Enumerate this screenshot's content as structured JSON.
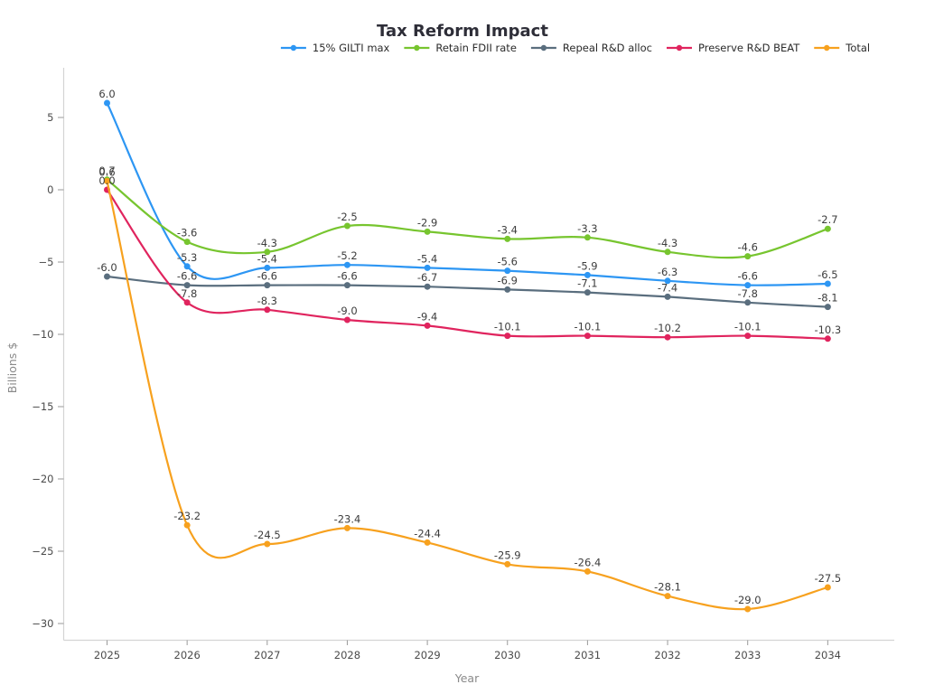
{
  "chart_data": {
    "type": "line",
    "title": "Tax Reform Impact",
    "xlabel": "Year",
    "ylabel": "Billions $",
    "x": [
      2025,
      2026,
      2027,
      2028,
      2029,
      2030,
      2031,
      2032,
      2033,
      2034
    ],
    "yticks": [
      5,
      0,
      -5,
      -10,
      -15,
      -20,
      -25,
      -30
    ],
    "ylim": [
      -31.1,
      8.4
    ],
    "xlim": [
      2024.45,
      2034.8
    ],
    "grid": false,
    "legend_position": "top-center",
    "marker": "circle",
    "line_style": "smooth",
    "point_labels_visible": true,
    "series": [
      {
        "name": "15% GILTI max",
        "color": "#2D96F3",
        "values": [
          6.0,
          -5.3,
          -5.4,
          -5.2,
          -5.4,
          -5.6,
          -5.9,
          -6.3,
          -6.6,
          -6.5
        ]
      },
      {
        "name": "Retain FDII rate",
        "color": "#77C52F",
        "values": [
          0.7,
          -3.6,
          -4.3,
          -2.5,
          -2.9,
          -3.4,
          -3.3,
          -4.3,
          -4.6,
          -2.7
        ]
      },
      {
        "name": "Repeal R&D alloc",
        "color": "#5A6E7E",
        "values": [
          -6.0,
          -6.6,
          -6.6,
          -6.6,
          -6.7,
          -6.9,
          -7.1,
          -7.4,
          -7.8,
          -8.1
        ]
      },
      {
        "name": "Preserve R&D BEAT",
        "color": "#E0245E",
        "values": [
          0.0,
          -7.8,
          -8.3,
          -9.0,
          -9.4,
          -10.1,
          -10.1,
          -10.2,
          -10.1,
          -10.3
        ]
      },
      {
        "name": "Total",
        "color": "#F7A11E",
        "values": [
          0.6,
          -23.2,
          -24.5,
          -23.4,
          -24.4,
          -25.9,
          -26.4,
          -28.1,
          -29.0,
          -27.5
        ]
      }
    ]
  }
}
